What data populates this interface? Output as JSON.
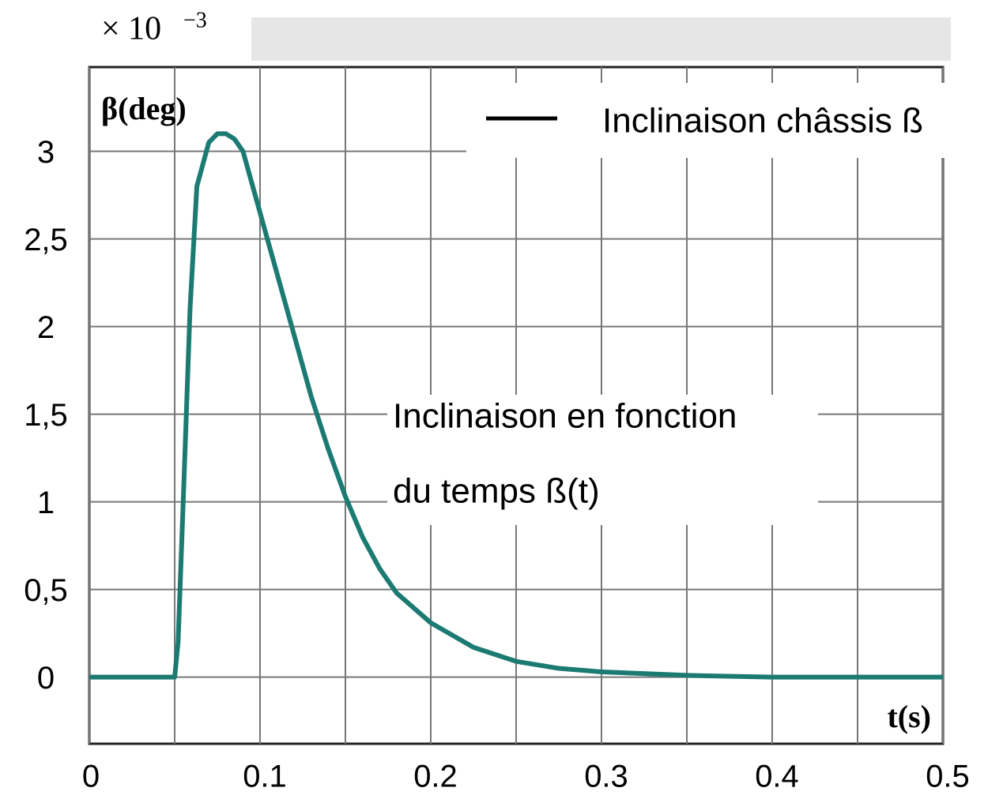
{
  "chart_data": {
    "type": "line",
    "y_multiplier": {
      "base": "× 10",
      "exponent": "−3"
    },
    "y_label": "β(deg)",
    "x_label": "t(s)",
    "annotation": [
      "Inclinaison en fonction",
      "du temps ß(t)"
    ],
    "legend_position": "upper right",
    "grid": true,
    "x": [
      0,
      0.05,
      0.052,
      0.055,
      0.059,
      0.063,
      0.07,
      0.075,
      0.08,
      0.085,
      0.09,
      0.1,
      0.11,
      0.12,
      0.13,
      0.14,
      0.15,
      0.16,
      0.17,
      0.18,
      0.2,
      0.225,
      0.25,
      0.275,
      0.3,
      0.35,
      0.4,
      0.5
    ],
    "series": [
      {
        "name": "Inclinaison châssis ß",
        "color": "#1b7b72",
        "values": [
          0,
          0,
          0.2,
          1.0,
          2.1,
          2.8,
          3.05,
          3.1,
          3.1,
          3.07,
          3.0,
          2.65,
          2.3,
          1.95,
          1.6,
          1.3,
          1.03,
          0.8,
          0.62,
          0.48,
          0.31,
          0.17,
          0.09,
          0.05,
          0.03,
          0.01,
          0,
          0
        ]
      }
    ],
    "xlim": [
      0,
      0.5
    ],
    "ylim": [
      -0.38,
      3.48
    ],
    "xticks": [
      0,
      0.1,
      0.2,
      0.3,
      0.4,
      0.5
    ],
    "xminor_ticks": [
      0.05,
      0.15,
      0.25,
      0.35,
      0.45
    ],
    "yticks": [
      0,
      {
        "value": 0.5,
        "label": "0,5"
      },
      1,
      {
        "value": 1.5,
        "label": "1,5"
      },
      2,
      {
        "value": 2.5,
        "label": "2,5"
      },
      3
    ]
  }
}
